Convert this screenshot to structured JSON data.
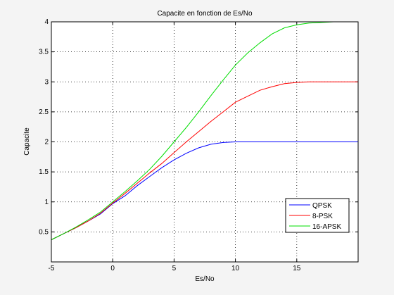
{
  "chart_data": {
    "type": "line",
    "title": "Capacite en fonction de Es/No",
    "xlabel": "Es/No",
    "ylabel": "Capacite",
    "xlim": [
      -5,
      20
    ],
    "ylim": [
      0,
      4
    ],
    "xticks": [
      "-5",
      "0",
      "5",
      "10",
      "15"
    ],
    "yticks": [
      "0.5",
      "1",
      "1.5",
      "2",
      "2.5",
      "3",
      "3.5",
      "4"
    ],
    "grid": "dotted",
    "legend_position": "bottom-right",
    "series": [
      {
        "name": "QPSK",
        "color": "#0000ff",
        "x": [
          -5,
          -4,
          -3,
          -2,
          -1,
          0,
          1,
          2,
          3,
          4,
          5,
          6,
          7,
          8,
          9,
          10,
          11,
          12,
          15,
          20
        ],
        "y": [
          0.37,
          0.47,
          0.57,
          0.68,
          0.8,
          0.97,
          1.1,
          1.27,
          1.42,
          1.57,
          1.7,
          1.81,
          1.9,
          1.96,
          1.99,
          2.0,
          2.0,
          2.0,
          2.0,
          2.0
        ]
      },
      {
        "name": "8-PSK",
        "color": "#ff0000",
        "x": [
          -5,
          -4,
          -3,
          -2,
          -1,
          0,
          1,
          2,
          3,
          4,
          5,
          6,
          7,
          8,
          9,
          10,
          11,
          12,
          13,
          14,
          15,
          16,
          17,
          20
        ],
        "y": [
          0.37,
          0.47,
          0.57,
          0.68,
          0.81,
          0.98,
          1.14,
          1.31,
          1.48,
          1.64,
          1.82,
          2.0,
          2.17,
          2.34,
          2.5,
          2.66,
          2.76,
          2.86,
          2.92,
          2.97,
          2.99,
          3.0,
          3.0,
          3.0
        ]
      },
      {
        "name": "16-APSK",
        "color": "#00dd00",
        "x": [
          -5,
          -4,
          -3,
          -2,
          -1,
          0,
          1,
          2,
          3,
          4,
          5,
          6,
          7,
          8,
          9,
          10,
          11,
          12,
          13,
          14,
          15,
          16,
          17,
          18,
          20
        ],
        "y": [
          0.37,
          0.47,
          0.58,
          0.7,
          0.83,
          1.0,
          1.17,
          1.35,
          1.54,
          1.76,
          2.0,
          2.24,
          2.5,
          2.77,
          3.03,
          3.28,
          3.48,
          3.65,
          3.8,
          3.9,
          3.95,
          3.98,
          3.99,
          4.0,
          4.0
        ]
      }
    ]
  }
}
